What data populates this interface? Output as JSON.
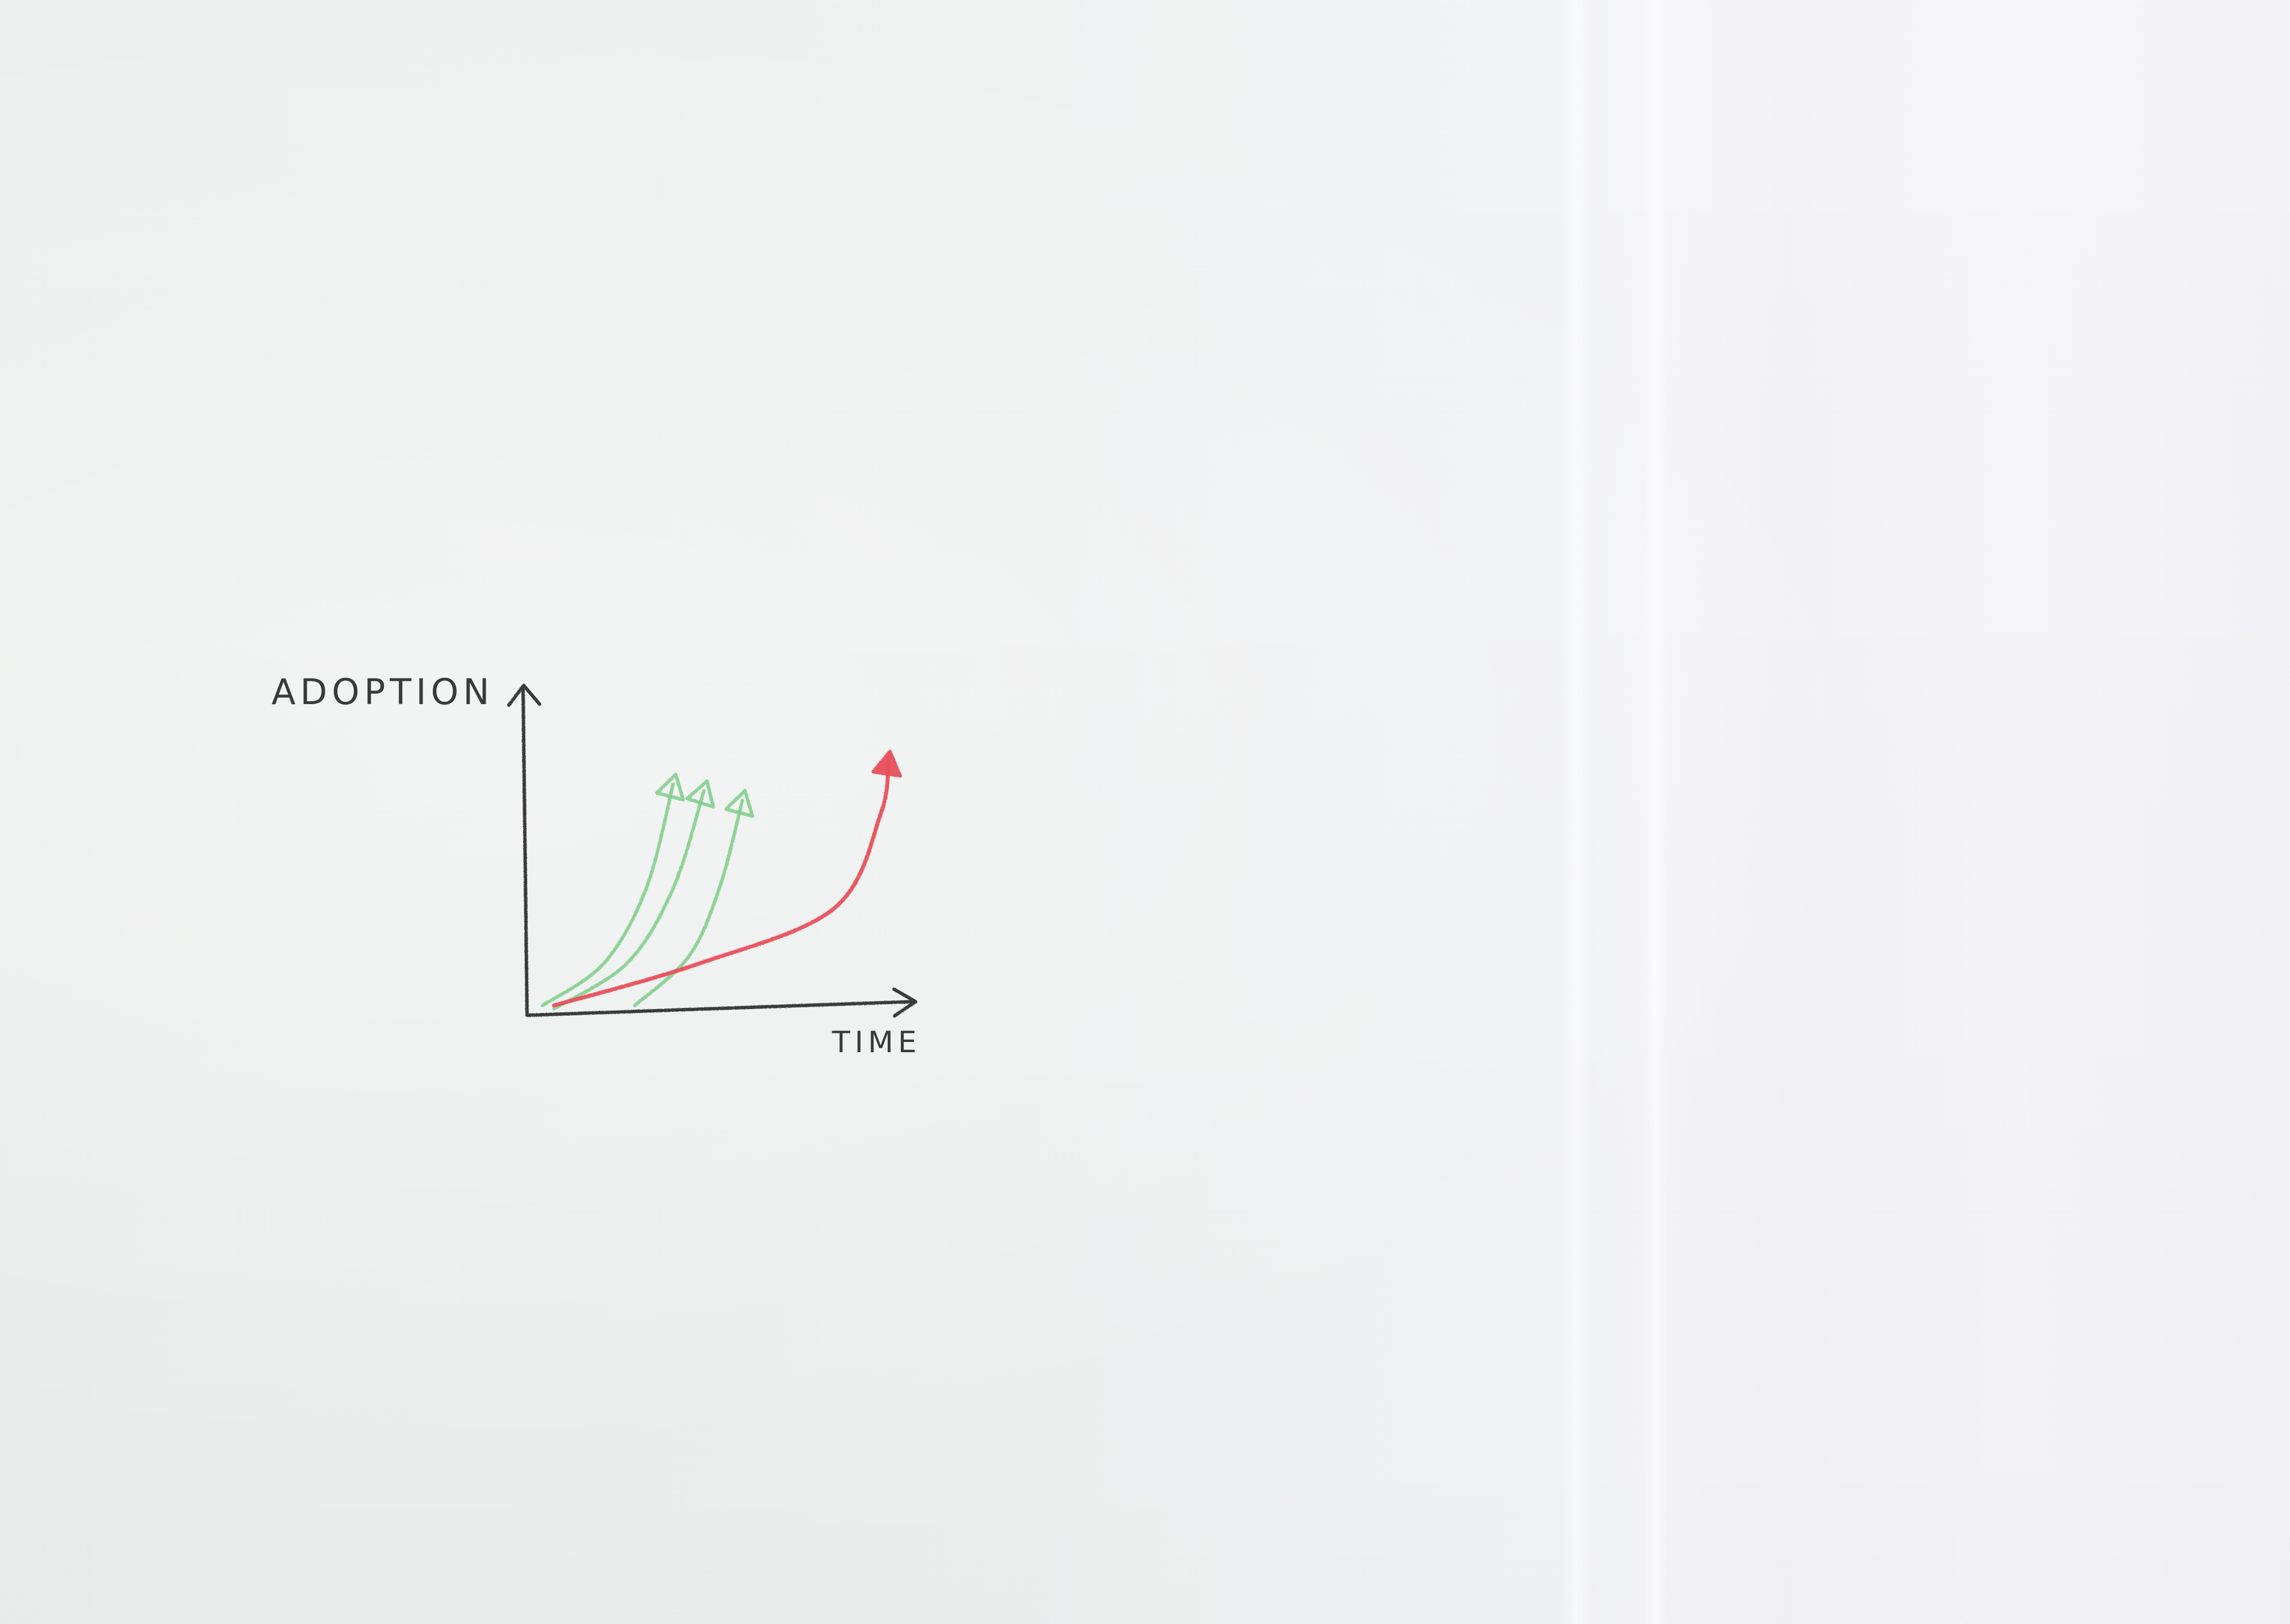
{
  "chart_data": {
    "type": "line",
    "xlabel": "TIME",
    "ylabel": "ADOPTION",
    "xlim": [
      0,
      10
    ],
    "ylim": [
      0,
      10
    ],
    "grid": false,
    "legend": "none",
    "series": [
      {
        "color": "#7dcc86",
        "points": [
          [
            0.4,
            0.3
          ],
          [
            2.0,
            1.6
          ],
          [
            3.1,
            3.9
          ],
          [
            3.8,
            7.1
          ]
        ]
      },
      {
        "color": "#7dcc86",
        "points": [
          [
            0.7,
            0.2
          ],
          [
            2.6,
            1.6
          ],
          [
            3.8,
            3.9
          ],
          [
            4.6,
            6.9
          ]
        ]
      },
      {
        "color": "#7dcc86",
        "points": [
          [
            2.8,
            0.3
          ],
          [
            4.2,
            1.8
          ],
          [
            5.0,
            3.9
          ],
          [
            5.6,
            6.6
          ]
        ]
      },
      {
        "color": "#e8505b",
        "points": [
          [
            0.7,
            0.3
          ],
          [
            4.5,
            1.6
          ],
          [
            8.0,
            3.3
          ],
          [
            9.2,
            6.2
          ],
          [
            9.4,
            7.8
          ]
        ]
      }
    ],
    "colors": {
      "axis": "#3a3a3a",
      "green": "#7dcc86",
      "red": "#e8505b"
    }
  }
}
